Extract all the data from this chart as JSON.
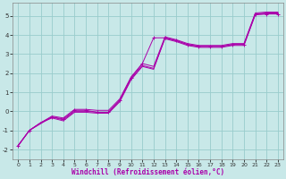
{
  "xlabel": "Windchill (Refroidissement éolien,°C)",
  "bg_color": "#c8e8e8",
  "line_color": "#aa00aa",
  "grid_color": "#99cccc",
  "xlim": [
    -0.5,
    23.5
  ],
  "ylim": [
    -2.5,
    5.7
  ],
  "yticks": [
    -2,
    -1,
    0,
    1,
    2,
    3,
    4,
    5
  ],
  "xticks": [
    0,
    1,
    2,
    3,
    4,
    5,
    6,
    7,
    8,
    9,
    10,
    11,
    12,
    13,
    14,
    15,
    16,
    17,
    18,
    19,
    20,
    21,
    22,
    23
  ],
  "line1_x": [
    0,
    1,
    2,
    3,
    4,
    5,
    6,
    7,
    8,
    9,
    10,
    11,
    12,
    13,
    14,
    15,
    16,
    17,
    18,
    19,
    20,
    21,
    22,
    23
  ],
  "line1_y": [
    -1.8,
    -1.0,
    -0.6,
    -0.3,
    -0.45,
    0.0,
    0.0,
    -0.05,
    -0.05,
    0.55,
    1.7,
    2.4,
    2.25,
    3.8,
    3.65,
    3.45,
    3.35,
    3.35,
    3.35,
    3.45,
    3.45,
    5.05,
    5.1,
    5.1
  ],
  "line2_x": [
    0,
    1,
    2,
    3,
    4,
    5,
    6,
    7,
    8,
    9,
    10,
    11,
    12,
    13,
    14,
    15,
    16,
    17,
    18,
    19,
    20,
    21,
    22,
    23
  ],
  "line2_y": [
    -1.8,
    -1.0,
    -0.6,
    -0.35,
    -0.5,
    -0.05,
    -0.05,
    -0.1,
    -0.1,
    0.5,
    1.65,
    2.35,
    2.2,
    3.85,
    3.7,
    3.5,
    3.4,
    3.4,
    3.4,
    3.5,
    3.5,
    5.1,
    5.15,
    5.15
  ],
  "line3_x": [
    0,
    1,
    2,
    3,
    4,
    5,
    6,
    7,
    8,
    9,
    10,
    11,
    12,
    13,
    14,
    15,
    16,
    17,
    18,
    19,
    20,
    21,
    22,
    23
  ],
  "line3_y": [
    -1.8,
    -1.0,
    -0.6,
    -0.25,
    -0.35,
    0.1,
    0.1,
    0.05,
    0.05,
    0.65,
    1.8,
    2.5,
    2.35,
    3.9,
    3.75,
    3.55,
    3.45,
    3.45,
    3.45,
    3.55,
    3.55,
    5.15,
    5.2,
    5.2
  ],
  "line4_x": [
    0,
    1,
    3,
    4,
    5,
    6,
    7,
    8,
    9,
    10,
    11,
    12,
    13,
    14,
    15,
    16,
    17,
    18,
    19,
    20,
    21,
    22,
    23
  ],
  "line4_y": [
    -1.8,
    -1.0,
    -0.3,
    -0.4,
    0.05,
    0.05,
    -0.05,
    -0.05,
    0.6,
    1.75,
    2.5,
    3.85,
    3.85,
    3.7,
    3.5,
    3.4,
    3.4,
    3.4,
    3.5,
    3.5,
    5.1,
    5.1,
    5.1
  ],
  "marker_x": [
    0,
    1,
    3,
    4,
    5,
    6,
    7,
    8,
    9,
    10,
    11,
    12,
    13,
    14,
    15,
    16,
    17,
    18,
    19,
    20,
    21,
    22,
    23
  ],
  "marker_y": [
    -1.8,
    -1.0,
    -0.3,
    -0.4,
    0.05,
    0.05,
    -0.05,
    -0.05,
    0.6,
    1.75,
    2.5,
    3.85,
    3.85,
    3.7,
    3.5,
    3.4,
    3.4,
    3.4,
    3.5,
    3.5,
    5.1,
    5.1,
    5.1
  ]
}
